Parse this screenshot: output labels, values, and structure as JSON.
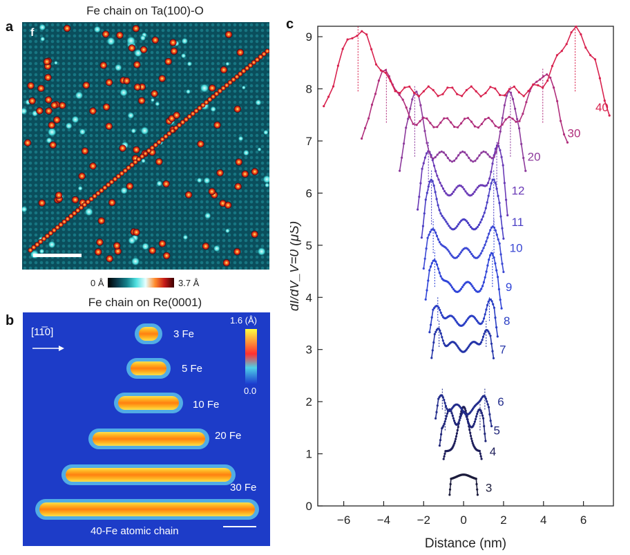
{
  "panel_a": {
    "letter": "a",
    "title": "Fe chain on Ta(100)-O",
    "inset_letter": "f",
    "colorbar_min": "0 Å",
    "colorbar_max": "3.7 Å"
  },
  "panel_b": {
    "letter": "b",
    "title": "Fe chain on Re(0001)",
    "direction": "[11̅0]",
    "colorbar_max": "1.6 (Å)",
    "colorbar_min": "0.0",
    "chains": [
      {
        "label": "3 Fe",
        "atoms": 3
      },
      {
        "label": "5 Fe",
        "atoms": 5
      },
      {
        "label": "10 Fe",
        "atoms": 10
      },
      {
        "label": "20 Fe",
        "atoms": 20
      },
      {
        "label": "30 Fe",
        "atoms": 30
      },
      {
        "label": "40-Fe atomic chain",
        "atoms": 40
      }
    ]
  },
  "panel_c": {
    "letter": "c"
  },
  "chart_data": {
    "type": "line",
    "title": "",
    "xlabel": "Distance (nm)",
    "ylabel": "dI/dV_V=0 (μS)",
    "xlim": [
      -7.3,
      7.5
    ],
    "ylim": [
      0,
      9.2
    ],
    "xticks": [
      -6,
      -4,
      -2,
      0,
      2,
      4,
      6
    ],
    "yticks": [
      0,
      1,
      2,
      3,
      4,
      5,
      6,
      7,
      8,
      9
    ],
    "series": [
      {
        "name": "3",
        "color": "#1c1c3c",
        "offset": 0.5,
        "xmin": -0.7,
        "xmax": 0.7,
        "peak": 0.12,
        "edge_height": 0.3,
        "label_x": 1.1,
        "label_y": 0.35
      },
      {
        "name": "4",
        "color": "#1e1e5a",
        "offset": 1.05,
        "xmin": -1.0,
        "xmax": 0.9,
        "peak": 0.85,
        "edge_height": 0.15,
        "label_x": 1.3,
        "label_y": 1.05
      },
      {
        "name": "5",
        "color": "#1f2578",
        "offset": 1.45,
        "xmin": -1.2,
        "xmax": 1.1,
        "peak": 0.4,
        "edge_height": 0.3,
        "label_x": 1.5,
        "label_y": 1.45
      },
      {
        "name": "6",
        "color": "#232d8c",
        "offset": 1.85,
        "xmin": -1.4,
        "xmax": 1.4,
        "peak": 0.3,
        "edge_height": 0.3,
        "label_x": 1.7,
        "label_y": 2.0
      },
      {
        "name": "7",
        "color": "#2434a8",
        "offset": 3.05,
        "xmin": -1.6,
        "xmax": 1.5,
        "peak": 0.4,
        "edge_height": 0.35,
        "label_x": 1.8,
        "label_y": 3.0
      },
      {
        "name": "8",
        "color": "#2a3ec4",
        "offset": 3.55,
        "xmin": -1.7,
        "xmax": 1.7,
        "peak": 0.35,
        "edge_height": 0.35,
        "label_x": 2.0,
        "label_y": 3.55
      },
      {
        "name": "9",
        "color": "#2f44d8",
        "offset": 4.2,
        "xmin": -1.9,
        "xmax": 1.9,
        "peak": 0.6,
        "edge_height": 0.4,
        "label_x": 2.1,
        "label_y": 4.2
      },
      {
        "name": "10",
        "color": "#3b48d4",
        "offset": 4.85,
        "xmin": -2.0,
        "xmax": 2.0,
        "peak": 0.55,
        "edge_height": 0.45,
        "label_x": 2.3,
        "label_y": 4.95
      },
      {
        "name": "11",
        "color": "#4a3ec4",
        "offset": 5.4,
        "xmin": -2.1,
        "xmax": 2.0,
        "peak": 0.95,
        "edge_height": 0.45,
        "label_x": 2.4,
        "label_y": 5.45
      },
      {
        "name": "12",
        "color": "#6a3ab6",
        "offset": 6.05,
        "xmin": -2.3,
        "xmax": 2.2,
        "peak": 0.85,
        "edge_height": 0.55,
        "label_x": 2.4,
        "label_y": 6.05
      },
      {
        "name": "20",
        "color": "#8d3a9c",
        "offset": 6.7,
        "xmin": -3.2,
        "xmax": 3.1,
        "peak": 1.25,
        "edge_height": 0.5,
        "label_x": 3.2,
        "label_y": 6.7
      },
      {
        "name": "30",
        "color": "#b02e7c",
        "offset": 7.35,
        "xmin": -5.1,
        "xmax": 5.2,
        "peak": 0.95,
        "edge_height": 0.5,
        "label_x": 5.2,
        "label_y": 7.15
      },
      {
        "name": "40",
        "color": "#d8224e",
        "offset": 7.95,
        "xmin": -7.0,
        "xmax": 7.3,
        "peak": 1.15,
        "edge_height": 0.5,
        "label_x": 6.6,
        "label_y": 7.65
      }
    ]
  }
}
